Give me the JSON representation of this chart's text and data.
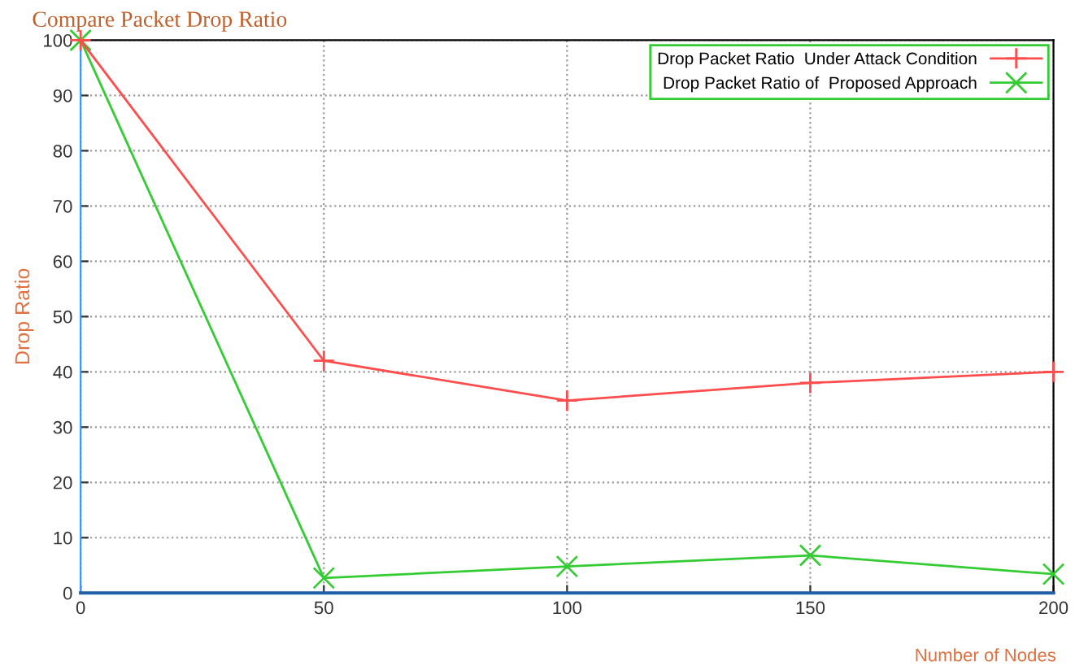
{
  "chart_data": {
    "type": "line",
    "title": "Compare Packet Drop Ratio",
    "xlabel": "Number of Nodes",
    "ylabel": "Drop Ratio",
    "x": [
      0,
      50,
      100,
      150,
      200
    ],
    "series": [
      {
        "name": "Drop Packet Ratio  Under Attack Condition",
        "color": "#ff4d4d",
        "values": [
          100,
          42,
          34.8,
          38,
          40
        ],
        "marker": "plus"
      },
      {
        "name": "Drop Packet Ratio of  Proposed Approach",
        "color": "#33cc33",
        "values": [
          100,
          2.7,
          4.8,
          6.8,
          3.4
        ],
        "marker": "cross"
      }
    ],
    "xlim": [
      0,
      200
    ],
    "xticks": [
      0,
      50,
      100,
      150,
      200
    ],
    "ylim": [
      0,
      100
    ],
    "yticks": [
      0,
      10,
      20,
      30,
      40,
      50,
      60,
      70,
      80,
      90,
      100
    ],
    "grid": true,
    "legend": "top right",
    "line_style": "solid"
  }
}
